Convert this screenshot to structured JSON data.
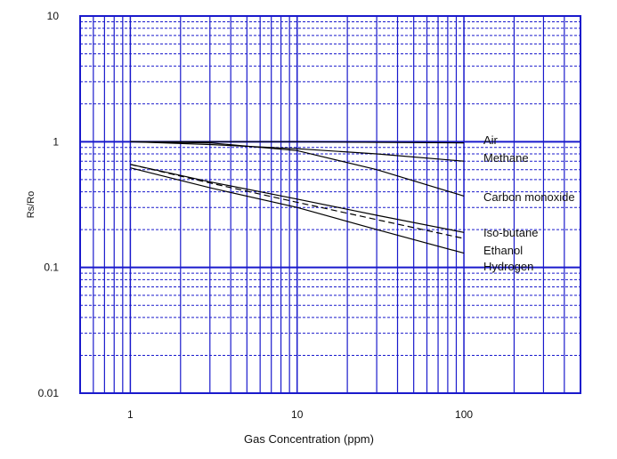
{
  "chart_data": {
    "type": "line",
    "x_label": "Gas Concentration (ppm)",
    "y_label": "Rs/Ro",
    "log_x": true,
    "log_y": true,
    "grid": true,
    "grid_color": "#1a1acc",
    "xlim": [
      0.5,
      500
    ],
    "ylim": [
      0.01,
      10
    ],
    "xticks": [
      1,
      10,
      100
    ],
    "yticks": [
      0.01,
      0.1,
      1,
      10
    ],
    "x": [
      1,
      3,
      10,
      30,
      100
    ],
    "series": [
      {
        "name": "Air",
        "color": "#000000",
        "values": [
          1.0,
          1.0,
          1.0,
          0.99,
          0.98
        ]
      },
      {
        "name": "Methane",
        "color": "#000000",
        "values": [
          1.0,
          0.95,
          0.88,
          0.8,
          0.7
        ]
      },
      {
        "name": "Carbon monoxide",
        "color": "#000000",
        "values": [
          1.0,
          0.98,
          0.85,
          0.6,
          0.37
        ]
      },
      {
        "name": "Iso-butane",
        "color": "#000000",
        "values": [
          0.66,
          0.48,
          0.35,
          0.26,
          0.19
        ]
      },
      {
        "name": "Ethanol",
        "color": "#000000",
        "dashed": true,
        "values": [
          0.66,
          0.47,
          0.33,
          0.24,
          0.17
        ]
      },
      {
        "name": "Hydrogen",
        "color": "#000000",
        "values": [
          0.62,
          0.43,
          0.3,
          0.2,
          0.13
        ]
      }
    ]
  }
}
